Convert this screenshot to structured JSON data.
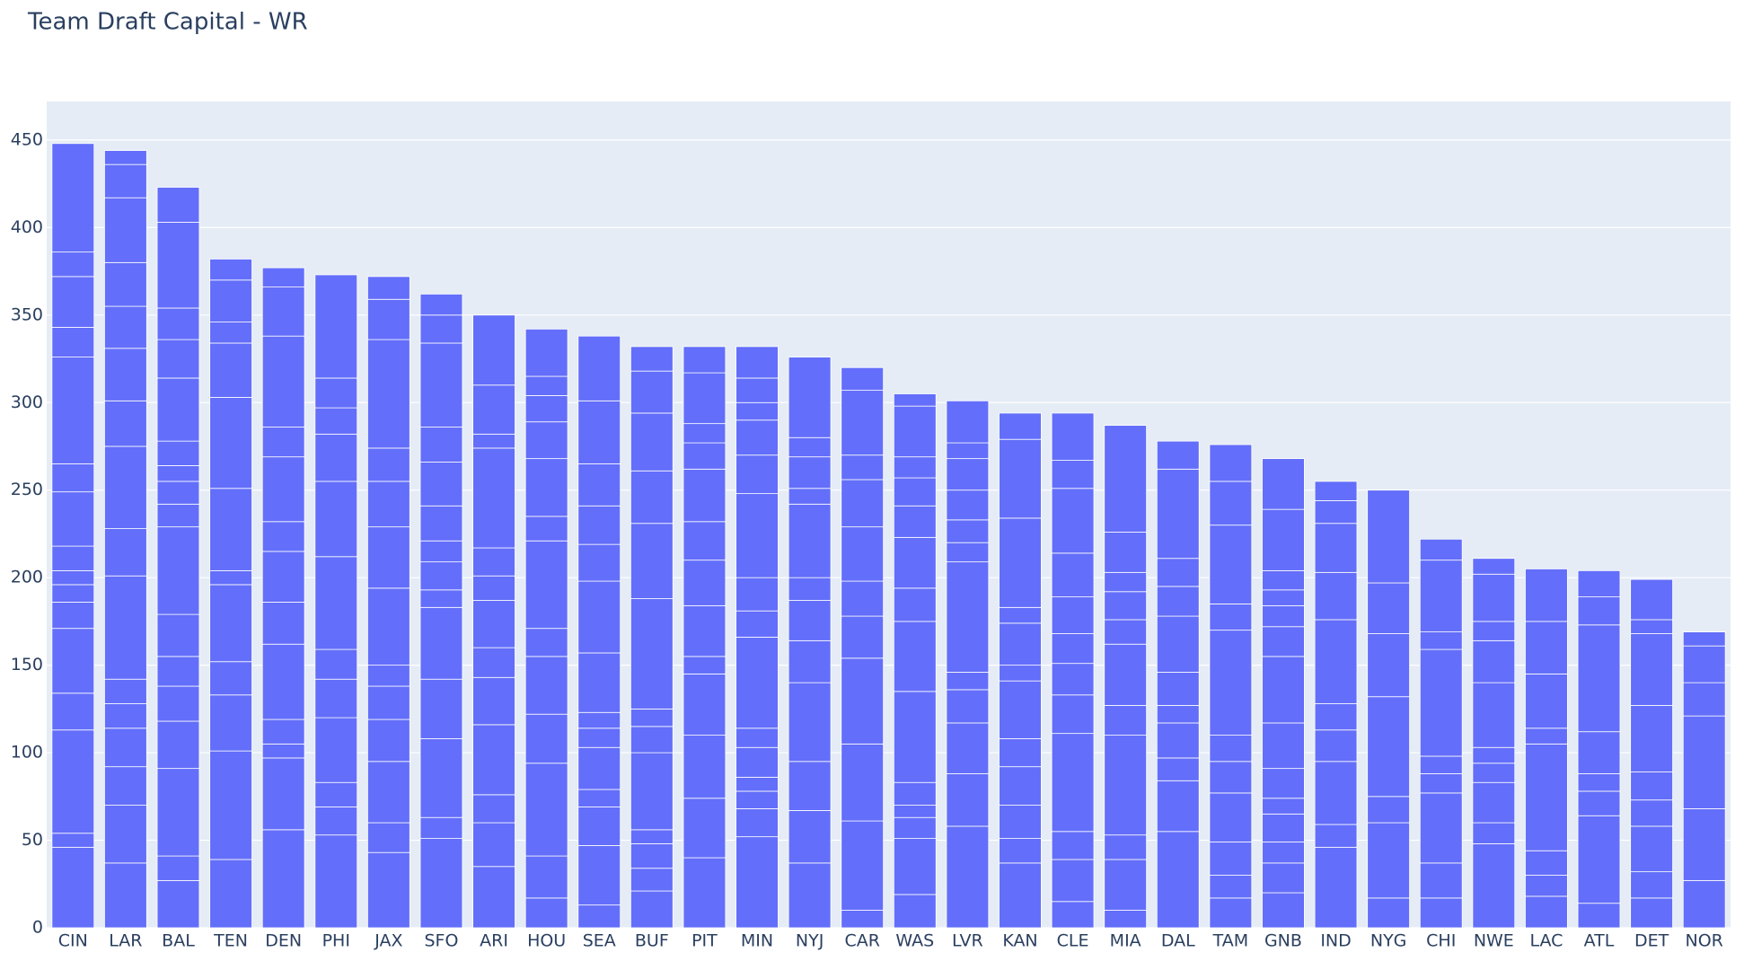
{
  "chart_data": {
    "type": "stacked_bar",
    "title": "Team Draft Capital - WR",
    "categories": [
      "CIN",
      "LAR",
      "BAL",
      "TEN",
      "DEN",
      "PHI",
      "JAX",
      "SFO",
      "ARI",
      "HOU",
      "SEA",
      "BUF",
      "PIT",
      "MIN",
      "NYJ",
      "CAR",
      "WAS",
      "LVR",
      "KAN",
      "CLE",
      "MIA",
      "DAL",
      "TAM",
      "GNB",
      "IND",
      "NYG",
      "CHI",
      "NWE",
      "LAC",
      "ATL",
      "DET",
      "NOR"
    ],
    "values": [
      [
        46,
        8,
        59,
        21,
        37,
        15,
        10,
        8,
        14,
        31,
        16,
        61,
        17,
        29,
        14,
        62
      ],
      [
        37,
        33,
        22,
        22,
        14,
        14,
        59,
        27,
        47,
        26,
        30,
        24,
        25,
        37,
        19,
        8
      ],
      [
        27,
        14,
        50,
        27,
        20,
        17,
        24,
        50,
        13,
        13,
        9,
        14,
        36,
        22,
        18,
        49,
        20
      ],
      [
        39,
        62,
        32,
        19,
        44,
        8,
        47,
        52,
        31,
        12,
        24,
        12
      ],
      [
        56,
        41,
        8,
        14,
        43,
        24,
        29,
        17,
        37,
        17,
        52,
        28,
        11
      ],
      [
        53,
        16,
        14,
        37,
        22,
        17,
        53,
        43,
        27,
        15,
        17,
        59
      ],
      [
        43,
        17,
        35,
        24,
        19,
        12,
        44,
        35,
        26,
        19,
        62,
        23,
        13
      ],
      [
        51,
        12,
        45,
        34,
        41,
        10,
        16,
        12,
        20,
        25,
        20,
        48,
        16,
        12
      ],
      [
        35,
        25,
        16,
        40,
        27,
        17,
        27,
        14,
        16,
        57,
        8,
        28,
        40
      ],
      [
        17,
        24,
        53,
        28,
        33,
        16,
        50,
        14,
        33,
        21,
        15,
        11,
        27
      ],
      [
        13,
        34,
        22,
        10,
        24,
        11,
        9,
        34,
        41,
        21,
        22,
        24,
        36,
        37
      ],
      [
        21,
        13,
        14,
        8,
        44,
        15,
        10,
        63,
        43,
        30,
        33,
        24,
        14
      ],
      [
        40,
        34,
        36,
        35,
        10,
        29,
        26,
        22,
        30,
        15,
        11,
        29,
        15
      ],
      [
        52,
        16,
        10,
        8,
        17,
        11,
        52,
        15,
        19,
        48,
        22,
        20,
        10,
        14,
        18
      ],
      [
        37,
        30,
        28,
        45,
        24,
        23,
        13,
        42,
        9,
        18,
        11,
        46
      ],
      [
        10,
        51,
        44,
        49,
        24,
        20,
        31,
        27,
        14,
        37,
        13
      ],
      [
        19,
        32,
        12,
        7,
        13,
        52,
        40,
        19,
        29,
        18,
        16,
        12,
        29,
        7
      ],
      [
        58,
        30,
        29,
        19,
        10,
        63,
        11,
        13,
        17,
        18,
        9,
        24
      ],
      [
        37,
        14,
        19,
        22,
        16,
        33,
        9,
        24,
        9,
        51,
        45,
        15
      ],
      [
        15,
        24,
        16,
        56,
        22,
        18,
        17,
        21,
        25,
        37,
        16,
        27
      ],
      [
        10,
        29,
        14,
        57,
        17,
        35,
        14,
        16,
        11,
        23,
        61
      ],
      [
        55,
        29,
        13,
        20,
        10,
        19,
        32,
        17,
        16,
        51,
        16
      ],
      [
        17,
        13,
        19,
        28,
        18,
        15,
        60,
        15,
        45,
        25,
        21
      ],
      [
        20,
        17,
        12,
        16,
        9,
        17,
        26,
        38,
        17,
        12,
        9,
        11,
        35,
        29
      ],
      [
        46,
        13,
        36,
        18,
        15,
        48,
        27,
        28,
        13,
        11
      ],
      [
        17,
        43,
        15,
        57,
        36,
        29,
        53
      ],
      [
        17,
        20,
        40,
        11,
        10,
        61,
        10,
        41,
        12
      ],
      [
        48,
        12,
        23,
        11,
        9,
        37,
        24,
        11,
        27,
        9
      ],
      [
        18,
        12,
        14,
        61,
        9,
        31,
        30,
        30
      ],
      [
        14,
        50,
        14,
        10,
        24,
        61,
        16,
        15
      ],
      [
        17,
        15,
        26,
        15,
        16,
        38,
        41,
        8,
        23
      ],
      [
        27,
        41,
        53,
        19,
        21,
        8
      ]
    ],
    "color": "#636efa",
    "ylim": [
      0,
      472
    ],
    "yticks": [
      0,
      50,
      100,
      150,
      200,
      250,
      300,
      350,
      400,
      450
    ],
    "grid": true
  }
}
